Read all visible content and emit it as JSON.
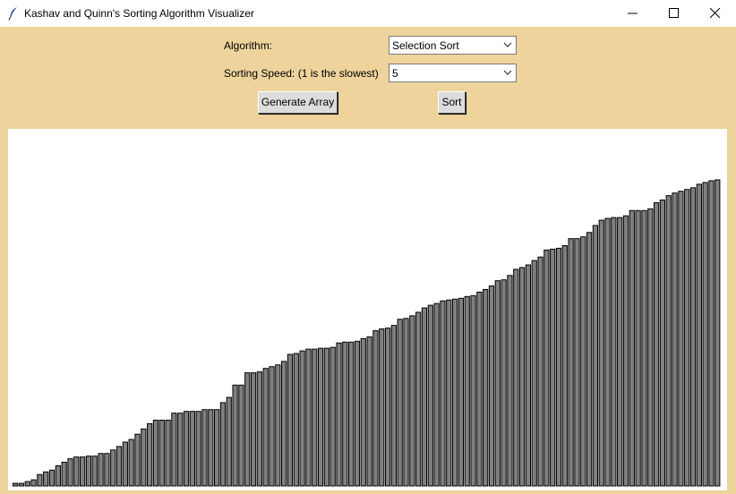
{
  "window": {
    "title": "Kashav and Quinn's Sorting Algorithm Visualizer",
    "icons": [
      "feather-icon",
      "minimize-icon",
      "maximize-icon",
      "close-icon"
    ]
  },
  "controls": {
    "algorithm_label": "Algorithm:",
    "algorithm_value": "Selection Sort",
    "speed_label": "Sorting Speed: (1 is the slowest)",
    "speed_value": "5",
    "generate_label": "Generate Array",
    "sort_label": "Sort"
  },
  "colors": {
    "background": "#EED49C",
    "bar_fill": "#808080",
    "bar_outline": "#000000",
    "canvas": "#FFFFFF"
  },
  "chart_data": {
    "type": "bar",
    "ylim": [
      0,
      400
    ],
    "values": [
      3,
      3,
      5,
      7,
      13,
      16,
      18,
      23,
      27,
      31,
      33,
      33,
      34,
      34,
      37,
      37,
      41,
      45,
      50,
      53,
      59,
      65,
      71,
      75,
      75,
      75,
      83,
      83,
      85,
      85,
      85,
      87,
      87,
      87,
      95,
      101,
      115,
      115,
      129,
      129,
      130,
      134,
      136,
      138,
      142,
      150,
      151,
      154,
      156,
      156,
      157,
      157,
      158,
      163,
      164,
      164,
      165,
      168,
      170,
      177,
      179,
      180,
      183,
      190,
      191,
      194,
      198,
      203,
      206,
      208,
      211,
      212,
      213,
      214,
      216,
      217,
      221,
      224,
      228,
      234,
      235,
      240,
      247,
      249,
      252,
      257,
      261,
      269,
      270,
      271,
      274,
      282,
      282,
      284,
      289,
      297,
      303,
      305,
      306,
      306,
      308,
      314,
      314,
      314,
      316,
      323,
      326,
      331,
      334,
      336,
      338,
      340,
      344,
      346,
      348,
      349
    ],
    "bar_fill": "#808080",
    "bar_outline": "#000000"
  }
}
